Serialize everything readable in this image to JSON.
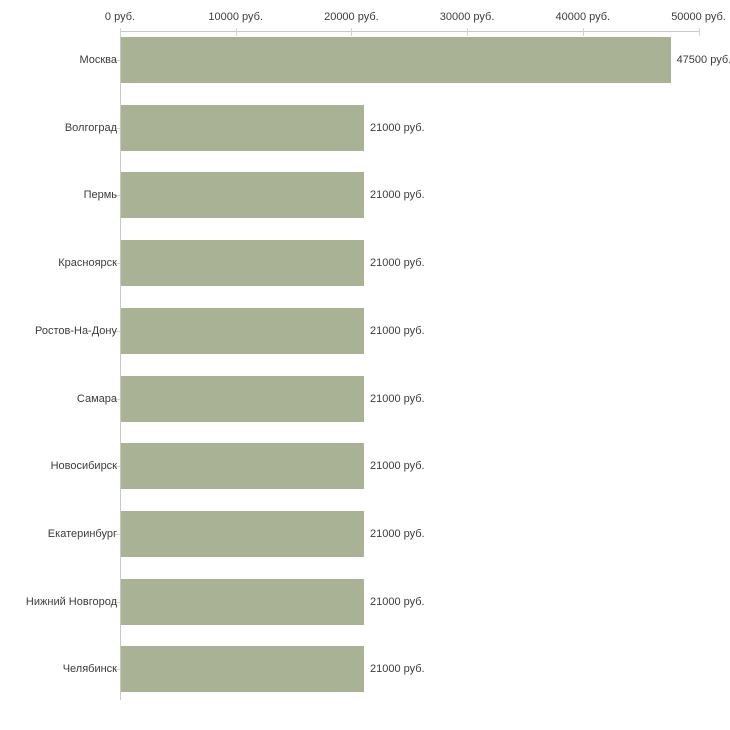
{
  "chart_data": {
    "type": "bar",
    "orientation": "horizontal",
    "title": "",
    "unit": "руб.",
    "categories": [
      "Москва",
      "Волгоград",
      "Пермь",
      "Красноярск",
      "Ростов-На-Дону",
      "Самара",
      "Новосибирск",
      "Екатеринбург",
      "Нижний Новгород",
      "Челябинск"
    ],
    "values": [
      47500,
      21000,
      21000,
      21000,
      21000,
      21000,
      21000,
      21000,
      21000,
      21000
    ],
    "bar_labels": [
      "47500 руб.",
      "21000 руб.",
      "21000 руб.",
      "21000 руб.",
      "21000 руб.",
      "21000 руб.",
      "21000 руб.",
      "21000 руб.",
      "21000 руб.",
      "21000 руб."
    ],
    "x_ticks": [
      {
        "value": 0,
        "label": "0 руб."
      },
      {
        "value": 10000,
        "label": "10000 руб."
      },
      {
        "value": 20000,
        "label": "20000 руб."
      },
      {
        "value": 30000,
        "label": "30000 руб."
      },
      {
        "value": 40000,
        "label": "40000 руб."
      },
      {
        "value": 50000,
        "label": "50000 руб."
      }
    ],
    "xlim": [
      0,
      52800
    ],
    "xlabel": "",
    "ylabel": "",
    "grid": false,
    "legend_position": "none",
    "colors": {
      "bar": "#a9b294",
      "axis_line": "#c8c8c8",
      "tick_mark": "#d6d8b8",
      "text": "#3c3c3c",
      "background": "#ffffff"
    }
  }
}
